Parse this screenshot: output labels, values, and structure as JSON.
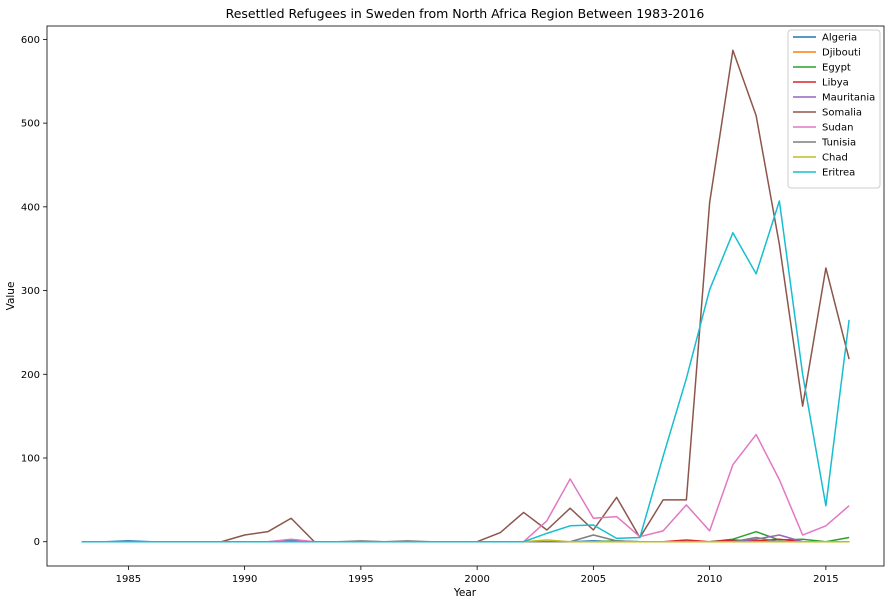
{
  "chart_data": {
    "type": "line",
    "title": "Resettled Refugees in Sweden from North Africa Region Between 1983-2016",
    "xlabel": "Year",
    "ylabel": "Value",
    "xlim": [
      1981.5,
      2017.5
    ],
    "ylim": [
      -29,
      616
    ],
    "xticks": [
      1985,
      1990,
      1995,
      2000,
      2005,
      2010,
      2015
    ],
    "yticks": [
      0,
      100,
      200,
      300,
      400,
      500,
      600
    ],
    "grid": false,
    "legend_position": "top-right",
    "x": [
      1983,
      1984,
      1985,
      1986,
      1987,
      1988,
      1989,
      1990,
      1991,
      1992,
      1993,
      1994,
      1995,
      1996,
      1997,
      1998,
      1999,
      2000,
      2001,
      2002,
      2003,
      2004,
      2005,
      2006,
      2007,
      2008,
      2009,
      2010,
      2011,
      2012,
      2013,
      2014,
      2015,
      2016
    ],
    "series": [
      {
        "name": "Algeria",
        "color": "#1f77b4",
        "values": [
          0,
          0,
          1,
          0,
          0,
          0,
          0,
          0,
          0,
          1,
          0,
          0,
          0,
          0,
          0,
          0,
          0,
          0,
          0,
          0,
          0,
          0,
          1,
          0,
          0,
          0,
          0,
          0,
          1,
          0,
          0,
          0,
          0,
          0
        ]
      },
      {
        "name": "Djibouti",
        "color": "#ff7f0e",
        "values": [
          0,
          0,
          0,
          0,
          0,
          0,
          0,
          0,
          0,
          0,
          0,
          0,
          0,
          0,
          0,
          0,
          0,
          0,
          0,
          0,
          0,
          0,
          0,
          0,
          0,
          0,
          0,
          0,
          0,
          1,
          0,
          0,
          0,
          0
        ]
      },
      {
        "name": "Egypt",
        "color": "#2ca02c",
        "values": [
          0,
          0,
          0,
          0,
          0,
          0,
          0,
          0,
          0,
          0,
          0,
          0,
          0,
          0,
          0,
          0,
          0,
          0,
          0,
          0,
          0,
          0,
          0,
          1,
          0,
          0,
          0,
          0,
          3,
          12,
          2,
          3,
          0,
          5
        ]
      },
      {
        "name": "Libya",
        "color": "#d62728",
        "values": [
          0,
          0,
          0,
          0,
          0,
          0,
          0,
          0,
          0,
          0,
          0,
          0,
          0,
          0,
          0,
          0,
          0,
          0,
          0,
          0,
          0,
          0,
          0,
          0,
          0,
          0,
          2,
          0,
          2,
          1,
          3,
          0,
          0,
          0
        ]
      },
      {
        "name": "Mauritania",
        "color": "#9467bd",
        "values": [
          0,
          0,
          0,
          0,
          0,
          0,
          0,
          0,
          0,
          0,
          0,
          0,
          0,
          0,
          0,
          0,
          0,
          0,
          0,
          0,
          0,
          0,
          0,
          0,
          0,
          0,
          0,
          0,
          0,
          3,
          8,
          0,
          0,
          0
        ]
      },
      {
        "name": "Somalia",
        "color": "#8c564b",
        "values": [
          0,
          0,
          0,
          0,
          0,
          0,
          0,
          8,
          12,
          28,
          0,
          0,
          0,
          0,
          0,
          0,
          0,
          0,
          11,
          35,
          14,
          40,
          14,
          53,
          5,
          50,
          50,
          405,
          587,
          509,
          355,
          162,
          327,
          218
        ]
      },
      {
        "name": "Sudan",
        "color": "#e377c2",
        "values": [
          0,
          0,
          0,
          0,
          0,
          0,
          0,
          0,
          0,
          3,
          0,
          0,
          0,
          0,
          0,
          0,
          0,
          0,
          0,
          0,
          25,
          75,
          28,
          30,
          6,
          13,
          44,
          13,
          92,
          128,
          74,
          8,
          19,
          43
        ]
      },
      {
        "name": "Tunisia",
        "color": "#7f7f7f",
        "values": [
          0,
          0,
          0,
          0,
          0,
          0,
          0,
          0,
          0,
          0,
          0,
          0,
          1,
          0,
          1,
          0,
          0,
          0,
          0,
          0,
          0,
          0,
          8,
          1,
          0,
          0,
          0,
          0,
          0,
          5,
          0,
          0,
          0,
          0
        ]
      },
      {
        "name": "Chad",
        "color": "#bcbd22",
        "values": [
          0,
          0,
          0,
          0,
          0,
          0,
          0,
          0,
          0,
          0,
          0,
          0,
          0,
          0,
          0,
          0,
          0,
          0,
          0,
          0,
          2,
          0,
          0,
          0,
          0,
          0,
          0,
          0,
          0,
          0,
          0,
          0,
          0,
          0
        ]
      },
      {
        "name": "Eritrea",
        "color": "#17becf",
        "values": [
          0,
          0,
          0,
          0,
          0,
          0,
          0,
          0,
          0,
          0,
          0,
          0,
          0,
          0,
          0,
          0,
          0,
          0,
          0,
          0,
          10,
          19,
          20,
          4,
          5,
          102,
          195,
          301,
          369,
          320,
          407,
          200,
          43,
          265
        ]
      }
    ]
  }
}
